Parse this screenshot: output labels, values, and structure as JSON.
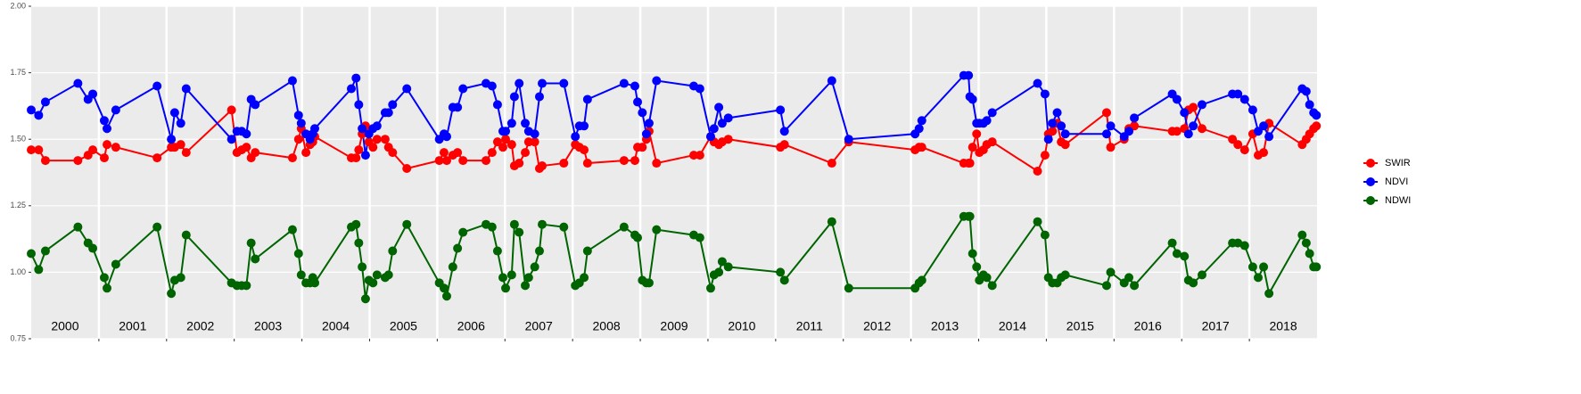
{
  "chart_data": {
    "type": "line",
    "x": [
      2000.0,
      2000.11,
      2000.21,
      2000.69,
      2000.84,
      2000.91,
      2001.08,
      2001.12,
      2001.25,
      2001.86,
      2002.07,
      2002.12,
      2002.21,
      2002.29,
      2002.96,
      2003.04,
      2003.11,
      2003.18,
      2003.25,
      2003.31,
      2003.86,
      2003.95,
      2003.99,
      2004.06,
      2004.12,
      2004.16,
      2004.19,
      2004.73,
      2004.8,
      2004.84,
      2004.89,
      2004.94,
      2004.99,
      2005.05,
      2005.11,
      2005.23,
      2005.28,
      2005.34,
      2005.55,
      2006.03,
      2006.1,
      2006.14,
      2006.23,
      2006.3,
      2006.38,
      2006.72,
      2006.81,
      2006.89,
      2006.97,
      2007.01,
      2007.1,
      2007.14,
      2007.21,
      2007.3,
      2007.35,
      2007.44,
      2007.51,
      2007.55,
      2007.87,
      2008.04,
      2008.1,
      2008.17,
      2008.22,
      2008.76,
      2008.92,
      2008.96,
      2009.03,
      2009.09,
      2009.13,
      2009.24,
      2009.79,
      2009.88,
      2010.04,
      2010.09,
      2010.16,
      2010.21,
      2010.3,
      2011.07,
      2011.13,
      2011.83,
      2012.08,
      2013.06,
      2013.12,
      2013.16,
      2013.78,
      2013.85,
      2013.87,
      2013.91,
      2013.97,
      2014.01,
      2014.07,
      2014.12,
      2014.2,
      2014.87,
      2014.98,
      2015.03,
      2015.09,
      2015.16,
      2015.22,
      2015.28,
      2015.89,
      2015.95,
      2016.15,
      2016.22,
      2016.3,
      2016.86,
      2016.93,
      2017.04,
      2017.1,
      2017.17,
      2017.3,
      2017.75,
      2017.83,
      2017.93,
      2018.05,
      2018.13,
      2018.21,
      2018.29,
      2018.78,
      2018.84,
      2018.89,
      2018.95,
      2018.99
    ],
    "series": [
      {
        "name": "SWIR",
        "color": "#ff0000",
        "values": [
          1.46,
          1.46,
          1.42,
          1.42,
          1.44,
          1.46,
          1.43,
          1.48,
          1.47,
          1.43,
          1.47,
          1.47,
          1.48,
          1.45,
          1.61,
          1.45,
          1.46,
          1.47,
          1.43,
          1.45,
          1.43,
          1.5,
          1.54,
          1.45,
          1.48,
          1.49,
          1.51,
          1.43,
          1.43,
          1.46,
          1.52,
          1.55,
          1.49,
          1.47,
          1.5,
          1.5,
          1.47,
          1.45,
          1.39,
          1.42,
          1.45,
          1.42,
          1.44,
          1.45,
          1.42,
          1.42,
          1.45,
          1.49,
          1.47,
          1.5,
          1.48,
          1.4,
          1.41,
          1.45,
          1.49,
          1.49,
          1.39,
          1.4,
          1.41,
          1.48,
          1.47,
          1.46,
          1.41,
          1.42,
          1.42,
          1.47,
          1.47,
          1.5,
          1.53,
          1.41,
          1.44,
          1.44,
          1.51,
          1.49,
          1.48,
          1.49,
          1.5,
          1.47,
          1.48,
          1.41,
          1.49,
          1.46,
          1.47,
          1.47,
          1.41,
          1.41,
          1.41,
          1.47,
          1.52,
          1.45,
          1.46,
          1.48,
          1.49,
          1.38,
          1.44,
          1.52,
          1.53,
          1.56,
          1.49,
          1.48,
          1.6,
          1.47,
          1.5,
          1.54,
          1.55,
          1.53,
          1.53,
          1.54,
          1.61,
          1.62,
          1.54,
          1.5,
          1.48,
          1.46,
          1.52,
          1.44,
          1.45,
          1.56,
          1.48,
          1.5,
          1.52,
          1.54,
          1.55
        ]
      },
      {
        "name": "NDVI",
        "color": "#0000ff",
        "values": [
          1.61,
          1.59,
          1.64,
          1.71,
          1.65,
          1.67,
          1.57,
          1.54,
          1.61,
          1.7,
          1.5,
          1.6,
          1.56,
          1.69,
          1.5,
          1.53,
          1.53,
          1.52,
          1.65,
          1.63,
          1.72,
          1.59,
          1.56,
          1.52,
          1.5,
          1.52,
          1.54,
          1.69,
          1.73,
          1.63,
          1.54,
          1.44,
          1.52,
          1.54,
          1.55,
          1.6,
          1.6,
          1.63,
          1.69,
          1.5,
          1.52,
          1.51,
          1.62,
          1.62,
          1.69,
          1.71,
          1.7,
          1.63,
          1.53,
          1.53,
          1.56,
          1.66,
          1.71,
          1.56,
          1.53,
          1.52,
          1.66,
          1.71,
          1.71,
          1.51,
          1.55,
          1.55,
          1.65,
          1.71,
          1.7,
          1.64,
          1.6,
          1.52,
          1.56,
          1.72,
          1.7,
          1.69,
          1.51,
          1.54,
          1.62,
          1.56,
          1.58,
          1.61,
          1.53,
          1.72,
          1.5,
          1.52,
          1.54,
          1.57,
          1.74,
          1.74,
          1.66,
          1.65,
          1.56,
          1.56,
          1.56,
          1.57,
          1.6,
          1.71,
          1.67,
          1.5,
          1.56,
          1.6,
          1.55,
          1.52,
          1.52,
          1.55,
          1.51,
          1.53,
          1.58,
          1.67,
          1.65,
          1.6,
          1.52,
          1.55,
          1.63,
          1.67,
          1.67,
          1.65,
          1.61,
          1.53,
          1.55,
          1.51,
          1.69,
          1.68,
          1.63,
          1.6,
          1.59
        ]
      },
      {
        "name": "NDWI",
        "color": "#006400",
        "values": [
          1.07,
          1.01,
          1.08,
          1.17,
          1.11,
          1.09,
          0.98,
          0.94,
          1.03,
          1.17,
          0.92,
          0.97,
          0.98,
          1.14,
          0.96,
          0.95,
          0.95,
          0.95,
          1.11,
          1.05,
          1.16,
          1.07,
          0.99,
          0.96,
          0.96,
          0.98,
          0.96,
          1.17,
          1.18,
          1.11,
          1.02,
          0.9,
          0.97,
          0.96,
          0.99,
          0.98,
          0.99,
          1.08,
          1.18,
          0.96,
          0.94,
          0.91,
          1.02,
          1.09,
          1.15,
          1.18,
          1.17,
          1.08,
          0.98,
          0.94,
          0.99,
          1.18,
          1.15,
          0.95,
          0.98,
          1.02,
          1.08,
          1.18,
          1.17,
          0.95,
          0.96,
          0.98,
          1.08,
          1.17,
          1.14,
          1.13,
          0.97,
          0.96,
          0.96,
          1.16,
          1.14,
          1.13,
          0.94,
          0.99,
          1.0,
          1.04,
          1.02,
          1.0,
          0.97,
          1.19,
          0.94,
          0.94,
          0.96,
          0.97,
          1.21,
          1.21,
          1.21,
          1.07,
          1.02,
          0.97,
          0.99,
          0.98,
          0.95,
          1.19,
          1.14,
          0.98,
          0.96,
          0.96,
          0.98,
          0.99,
          0.95,
          1.0,
          0.96,
          0.98,
          0.95,
          1.11,
          1.07,
          1.06,
          0.97,
          0.96,
          0.99,
          1.11,
          1.11,
          1.1,
          1.02,
          0.98,
          1.02,
          0.92,
          1.14,
          1.11,
          1.07,
          1.02,
          1.02
        ]
      }
    ],
    "xlim": [
      2000,
      2019
    ],
    "xticks": [
      {
        "value": 2000.5,
        "label": "2000"
      },
      {
        "value": 2001.5,
        "label": "2001"
      },
      {
        "value": 2002.5,
        "label": "2002"
      },
      {
        "value": 2003.5,
        "label": "2003"
      },
      {
        "value": 2004.5,
        "label": "2004"
      },
      {
        "value": 2005.5,
        "label": "2005"
      },
      {
        "value": 2006.5,
        "label": "2006"
      },
      {
        "value": 2007.5,
        "label": "2007"
      },
      {
        "value": 2008.5,
        "label": "2008"
      },
      {
        "value": 2009.5,
        "label": "2009"
      },
      {
        "value": 2010.5,
        "label": "2010"
      },
      {
        "value": 2011.5,
        "label": "2011"
      },
      {
        "value": 2012.5,
        "label": "2012"
      },
      {
        "value": 2013.5,
        "label": "2013"
      },
      {
        "value": 2014.5,
        "label": "2014"
      },
      {
        "value": 2015.5,
        "label": "2015"
      },
      {
        "value": 2016.5,
        "label": "2016"
      },
      {
        "value": 2017.5,
        "label": "2017"
      },
      {
        "value": 2018.5,
        "label": "2018"
      }
    ],
    "xgrid": [
      2001,
      2002,
      2003,
      2004,
      2005,
      2006,
      2007,
      2008,
      2009,
      2010,
      2011,
      2012,
      2013,
      2014,
      2015,
      2016,
      2017,
      2018
    ],
    "ylim": [
      0.75,
      2.0
    ],
    "yticks": [
      {
        "value": 0.75,
        "label": "0.75"
      },
      {
        "value": 1.0,
        "label": "1.00"
      },
      {
        "value": 1.25,
        "label": "1.25"
      },
      {
        "value": 1.5,
        "label": "1.50"
      },
      {
        "value": 1.75,
        "label": "1.75"
      },
      {
        "value": 2.0,
        "label": "2.00"
      }
    ],
    "grid": true,
    "legend": "right"
  }
}
